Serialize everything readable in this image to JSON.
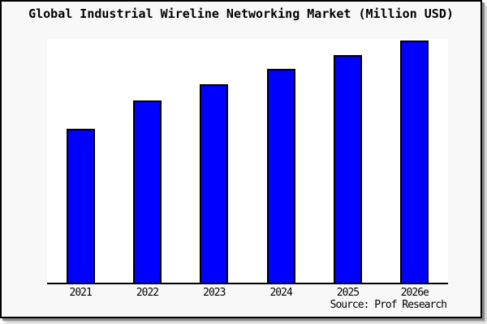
{
  "source": "Source: Prof Research",
  "chart_data": {
    "type": "bar",
    "title": "Global Industrial Wireline Networking Market (Million USD)",
    "categories": [
      "2021",
      "2022",
      "2023",
      "2024",
      "2025",
      "2026e"
    ],
    "values": [
      63.6,
      75.3,
      81.8,
      88.2,
      94.1,
      100
    ],
    "values_note": "No y-axis ticks/labels or gridlines are shown; values are relative bar heights as a percent of the tallest (2026e) bar",
    "xlabel": "",
    "ylabel": "",
    "legend": false,
    "grid": false,
    "bar_color": "#0000ff",
    "bar_border_color": "#000000",
    "plot_background": "#ffffff",
    "figure_background": "#f8f8f8",
    "frame_border_color": "#000000"
  }
}
